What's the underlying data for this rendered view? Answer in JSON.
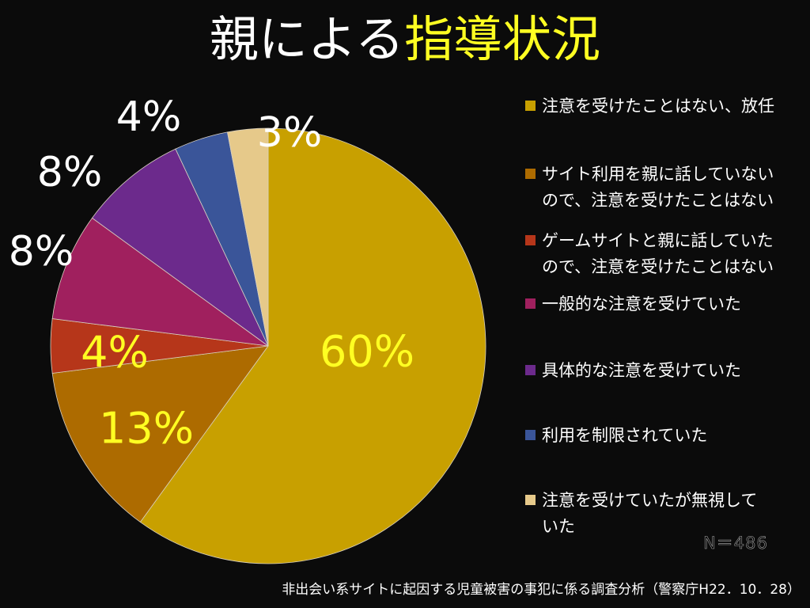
{
  "header": {
    "title_part1": "親による",
    "title_part2": "指導状況"
  },
  "chart_data": {
    "type": "pie",
    "categories": [
      "注意を受けたことはない、放任",
      "サイト利用を親に話していないので、注意を受けたことはない",
      "ゲームサイトと親に話していたので、注意を受けたことはない",
      "一般的な注意を受けていた",
      "具体的な注意を受けていた",
      "利用を制限されていた",
      "注意を受けていたが無視していた"
    ],
    "values": [
      60,
      13,
      4,
      8,
      8,
      4,
      3
    ],
    "data_labels": [
      "60%",
      "13%",
      "4%",
      "8%",
      "8%",
      "4%",
      "3%"
    ],
    "colors": [
      "#c8a000",
      "#ad6b00",
      "#b6361a",
      "#a0205e",
      "#6c2a8c",
      "#3a5599",
      "#e6c98a"
    ],
    "label_colors": [
      "#ffff22",
      "#ffff22",
      "#ffff22",
      "#ffffff",
      "#ffffff",
      "#ffffff",
      "#ffffff"
    ],
    "legend_placement": "right"
  },
  "legend": {
    "lines": [
      [
        "注意を受けたことはない、放任"
      ],
      [
        "サイト利用を親に話していない",
        "ので、注意を受けたことはない"
      ],
      [
        "ゲームサイトと親に話していた",
        "ので、注意を受けたことはない"
      ],
      [
        "一般的な注意を受けていた"
      ],
      [
        "具体的な注意を受けていた"
      ],
      [
        "利用を制限されていた"
      ],
      [
        "注意を受けていたが無視して",
        "いた"
      ]
    ]
  },
  "note": {
    "sample_size": "N＝486",
    "source": "非出会い系サイトに起因する児童被害の事犯に係る調査分析（警察庁H22．10．28）"
  }
}
